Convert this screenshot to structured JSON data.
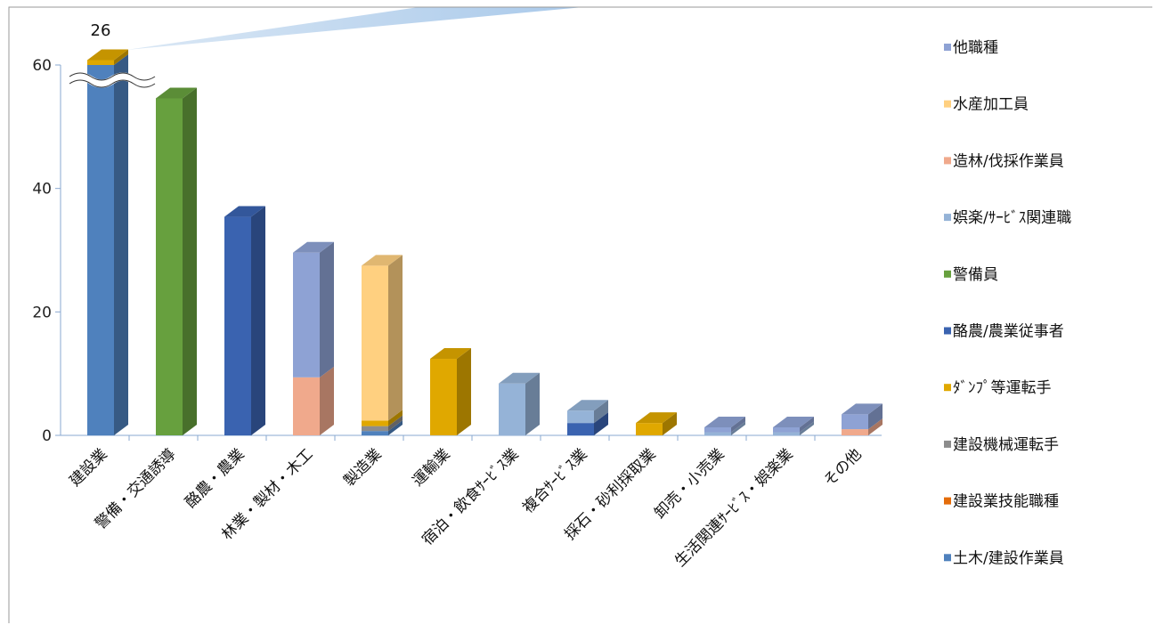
{
  "chart_data": {
    "type": "bar",
    "subtype": "stacked-3d-column",
    "ylim": [
      0,
      60
    ],
    "yticks": [
      0,
      20,
      40,
      60
    ],
    "grid": false,
    "legend_position": "right",
    "axis_break": {
      "category": "建設業",
      "label": "26"
    },
    "categories": [
      "建設業",
      "警備・交通誘導",
      "酪農・農業",
      "林業・製材・木工",
      "製造業",
      "運輸業",
      "宿泊・飲食ｻｰﾋﾞｽ業",
      "複合ｻｰﾋﾞｽ業",
      "採石・砂利採取業",
      "卸売・小売業",
      "生活関連ｻｰﾋﾞｽ・娯楽業",
      "その他"
    ],
    "series": [
      {
        "name": "土木/建設作業員",
        "color": "#4f81bd",
        "values": [
          60,
          0,
          0,
          0,
          0.7,
          0,
          0,
          0,
          0,
          0,
          0,
          0
        ]
      },
      {
        "name": "建設業技能職種",
        "color": "#e46c0a",
        "values": [
          0,
          0,
          0,
          0,
          0,
          0,
          0,
          0,
          0,
          0,
          0,
          0
        ]
      },
      {
        "name": "建設機械運転手",
        "color": "#8c8c8c",
        "values": [
          0,
          0,
          0,
          0,
          0.8,
          0,
          0,
          0,
          0,
          0,
          0,
          0
        ]
      },
      {
        "name": "ﾀﾞﾝﾌﾟ等運転手",
        "color": "#e0a800",
        "values": [
          0.8,
          0,
          0,
          0,
          0.9,
          12.4,
          0,
          0,
          2,
          0,
          0,
          0
        ]
      },
      {
        "name": "酪農/農業従事者",
        "color": "#3a63b0",
        "values": [
          0,
          0,
          35.4,
          0,
          0,
          0,
          0,
          2,
          0,
          0,
          0,
          0
        ]
      },
      {
        "name": "警備員",
        "color": "#67a03e",
        "values": [
          0,
          54.6,
          0,
          0,
          0,
          0,
          0,
          0,
          0,
          0,
          0,
          0
        ]
      },
      {
        "name": "娯楽/ｻｰﾋﾞｽ関連職",
        "color": "#95b3d7",
        "values": [
          0,
          0,
          0,
          0,
          0,
          0,
          8.4,
          2,
          0,
          0.5,
          0.5,
          0
        ]
      },
      {
        "name": "造林/伐採作業員",
        "color": "#f0a98c",
        "values": [
          0,
          0,
          0,
          9.4,
          0,
          0,
          0,
          0,
          0,
          0,
          0,
          1
        ]
      },
      {
        "name": "水産加工員",
        "color": "#ffd080",
        "values": [
          0,
          0,
          0,
          0,
          25.1,
          0,
          0,
          0,
          0,
          0,
          0,
          0
        ]
      },
      {
        "name": "他職種",
        "color": "#8ea2d4",
        "values": [
          0,
          0,
          0,
          20.2,
          0,
          0,
          0,
          0,
          0,
          0.8,
          0.8,
          2.4
        ]
      }
    ],
    "legend_order": [
      "他職種",
      "水産加工員",
      "造林/伐採作業員",
      "娯楽/ｻｰﾋﾞｽ関連職",
      "警備員",
      "酪農/農業従事者",
      "ﾀﾞﾝﾌﾟ等運転手",
      "建設機械運転手",
      "建設業技能職種",
      "土木/建設作業員"
    ]
  }
}
